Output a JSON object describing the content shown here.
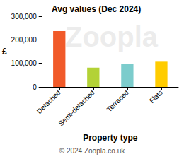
{
  "chart_data": {
    "type": "bar",
    "title": "Avg values (Dec 2024)",
    "x_label": "Property type",
    "y_label": "£",
    "footer": "© 2024 Zoopla.co.uk",
    "watermark": "Zoopla",
    "categories": [
      "Detached",
      "Semi-detached",
      "Terraced",
      "Flats"
    ],
    "values": [
      237000,
      82000,
      98000,
      107000
    ],
    "colors": [
      "#f15a29",
      "#b3d236",
      "#7ccccc",
      "#ffcc00"
    ],
    "ylim": [
      0,
      300000
    ],
    "yticks": [
      0,
      {
        "value": 100000,
        "label": "100,000"
      },
      {
        "value": 200000,
        "label": "200,000"
      },
      {
        "value": 300000,
        "label": "300,000"
      }
    ],
    "grid": false
  }
}
